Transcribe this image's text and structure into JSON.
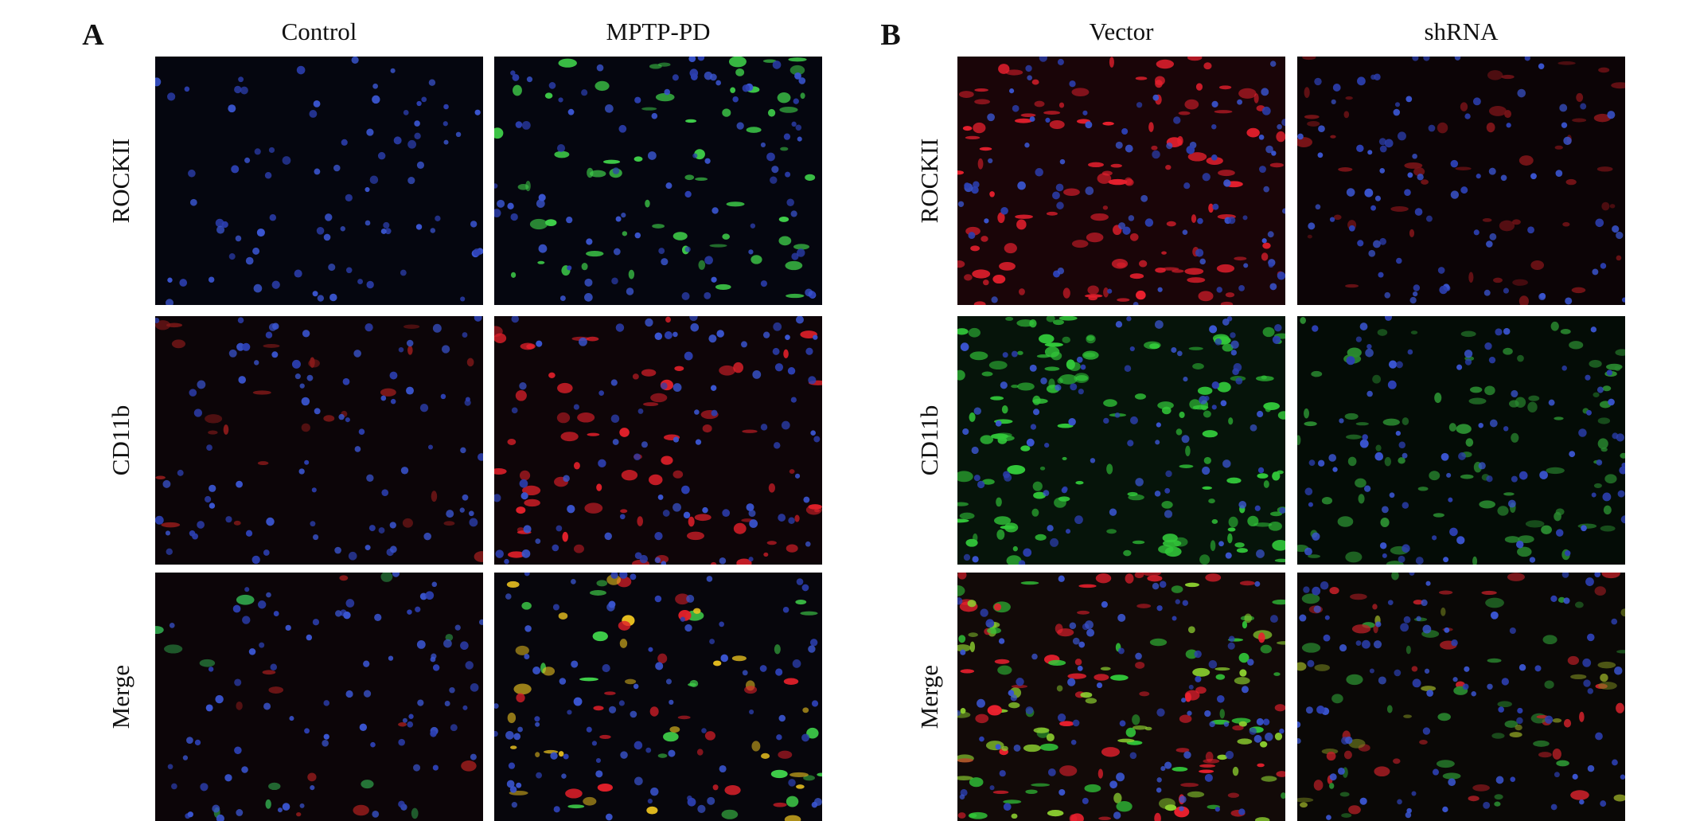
{
  "figure": {
    "panels": [
      {
        "label": "A",
        "columns": [
          "Control",
          "MPTP-PD"
        ],
        "rows": [
          "ROCKII",
          "CD11b",
          "Merge"
        ]
      },
      {
        "label": "B",
        "columns": [
          "Vector",
          "shRNA"
        ],
        "rows": [
          "ROCKII",
          "CD11b",
          "Merge"
        ]
      }
    ]
  }
}
